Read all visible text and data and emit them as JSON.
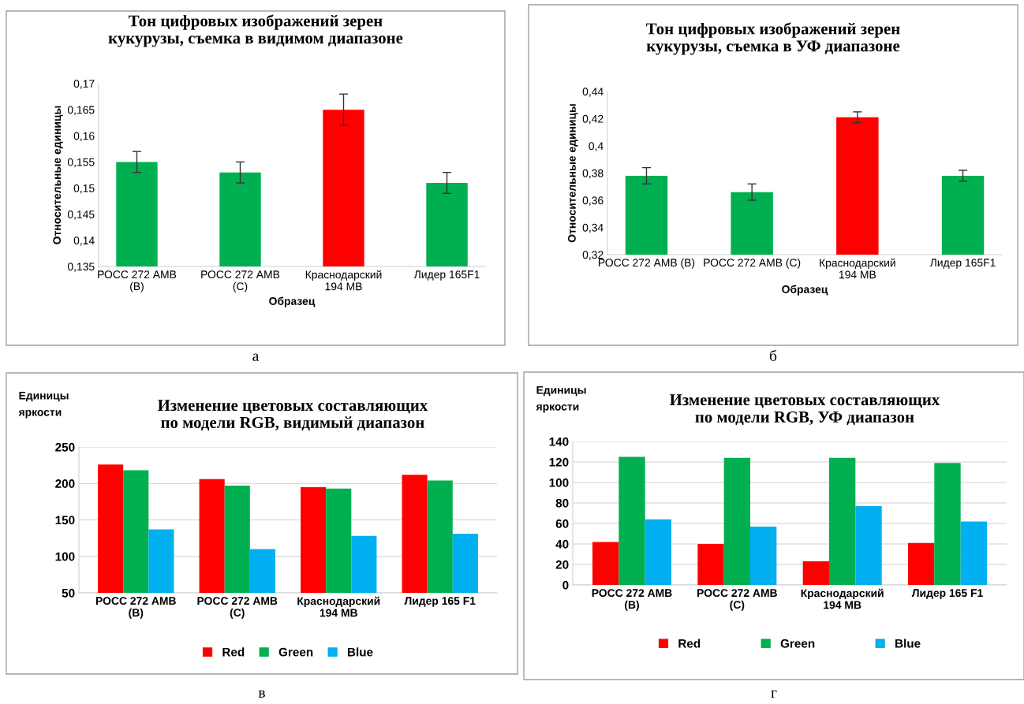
{
  "chart_data": [
    {
      "type": "bar",
      "title": "Тон цифровых изображений зерен\nкукурузы, съемка в видимом диапазоне",
      "xlabel": "Образец",
      "ylabel": "Относительные единицы",
      "categories": [
        "РОСС 272 АМВ\n(В)",
        "РОСС 272 АМВ\n(С)",
        "Краснодарский\n194 МВ",
        "Лидер 165F1"
      ],
      "values": [
        0.155,
        0.153,
        0.165,
        0.151
      ],
      "colors": [
        "#00b050",
        "#00b050",
        "#ff0000",
        "#00b050"
      ],
      "errors": [
        0.002,
        0.002,
        0.003,
        0.002
      ],
      "ylim": [
        0.135,
        0.17
      ],
      "yticks": [
        {
          "value": 0.135,
          "label": "0,135"
        },
        {
          "value": 0.14,
          "label": "0,14"
        },
        {
          "value": 0.145,
          "label": "0,145"
        },
        {
          "value": 0.15,
          "label": "0,15"
        },
        {
          "value": 0.155,
          "label": "0,155"
        },
        {
          "value": 0.16,
          "label": "0,16"
        },
        {
          "value": 0.165,
          "label": "0,165"
        },
        {
          "value": 0.17,
          "label": "0,17"
        }
      ],
      "grid": false,
      "annotations": [
        "а"
      ]
    },
    {
      "type": "bar",
      "title": "Тон цифровых изображений зерен\nкукурузы, съемка в УФ диапазоне",
      "xlabel": "Образец",
      "ylabel": "Относительные единицы",
      "categories": [
        "РОСС 272 АМВ (В)",
        "РОСС 272 АМВ (С)",
        "Краснодарский\n194 МВ",
        "Лидер 165F1"
      ],
      "values": [
        0.378,
        0.366,
        0.421,
        0.378
      ],
      "colors": [
        "#00b050",
        "#00b050",
        "#ff0000",
        "#00b050"
      ],
      "errors": [
        0.006,
        0.006,
        0.004,
        0.004
      ],
      "ylim": [
        0.32,
        0.44
      ],
      "yticks": [
        {
          "value": 0.32,
          "label": "0,32"
        },
        {
          "value": 0.34,
          "label": "0,34"
        },
        {
          "value": 0.36,
          "label": "0,36"
        },
        {
          "value": 0.38,
          "label": "0,38"
        },
        {
          "value": 0.4,
          "label": "0,4"
        },
        {
          "value": 0.42,
          "label": "0,42"
        },
        {
          "value": 0.44,
          "label": "0,44"
        }
      ],
      "grid": false,
      "annotations": [
        "б"
      ]
    },
    {
      "type": "bar",
      "title": "Изменение цветовых составляющих\nпо модели RGB, видимый диапазон",
      "ylabel": "Единицы\nяркости",
      "categories": [
        "РОСС 272 АМВ\n(В)",
        "РОСС 272 АМВ\n(С)",
        "Краснодарский\n194 МВ",
        "Лидер 165 F1"
      ],
      "series": [
        {
          "name": "Red",
          "color": "#ff0000",
          "values": [
            226,
            206,
            195,
            212
          ]
        },
        {
          "name": "Green",
          "color": "#00b050",
          "values": [
            218,
            197,
            193,
            204
          ]
        },
        {
          "name": "Blue",
          "color": "#00b0f0",
          "values": [
            137,
            110,
            128,
            131
          ]
        }
      ],
      "ylim": [
        50,
        250
      ],
      "yticks": [
        50,
        100,
        150,
        200,
        250
      ],
      "grid": "y",
      "legend": "bottom",
      "annotations": [
        "в"
      ]
    },
    {
      "type": "bar",
      "title": "Изменение цветовых составляющих\nпо модели RGB, УФ диапазон",
      "ylabel": "Единицы\nяркости",
      "categories": [
        "РОСС 272 АМВ\n(В)",
        "РОСС 272 АМВ\n(С)",
        "Краснодарский\n194 МВ",
        "Лидер 165 F1"
      ],
      "series": [
        {
          "name": "Red",
          "color": "#ff0000",
          "values": [
            42,
            40,
            23,
            41
          ]
        },
        {
          "name": "Green",
          "color": "#00b050",
          "values": [
            125,
            124,
            124,
            119
          ]
        },
        {
          "name": "Blue",
          "color": "#00b0f0",
          "values": [
            64,
            57,
            77,
            62
          ]
        }
      ],
      "ylim": [
        0,
        140
      ],
      "yticks": [
        0,
        20,
        40,
        60,
        80,
        100,
        120,
        140
      ],
      "grid": "y",
      "legend": "bottom",
      "annotations": [
        "г"
      ]
    }
  ]
}
